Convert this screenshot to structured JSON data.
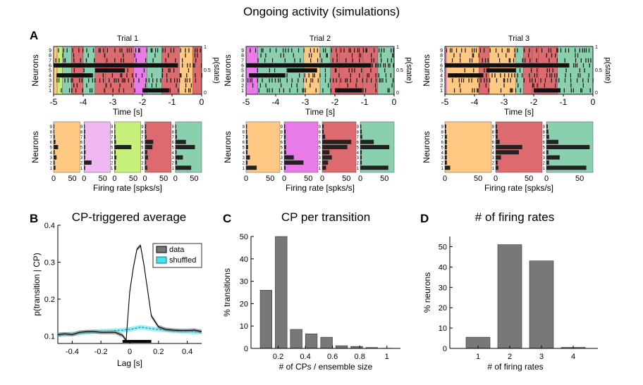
{
  "figure": {
    "title": "Ongoing activity (simulations)",
    "panel_labels": [
      "A",
      "B",
      "C",
      "D"
    ]
  },
  "colors": {
    "orange": "#FFC983",
    "pink": "#E87BE8",
    "lightpink": "#F0B8F0",
    "lime": "#C6F07A",
    "red": "#DC6A6E",
    "green": "#8ACFAE",
    "bar": "#787878",
    "cyan": "#3FE6F0"
  },
  "panel_a": {
    "ylabel_neurons": "Neurons",
    "ylabel_pstate": "p(state)",
    "xlabel_time": "Time [s]",
    "xlabel_rate": "Firing rate [spks/s]",
    "pstate_ticks": [
      "1",
      "0.5",
      "0"
    ],
    "neuron_ticks": [
      "9",
      "8",
      "7",
      "6",
      "5",
      "4",
      "3",
      "2",
      "1"
    ],
    "time_ticks": [
      "-5",
      "-4",
      "-3",
      "-2",
      "-1",
      "0"
    ],
    "trials": [
      {
        "title": "Trial 1",
        "segments": [
          [
            -5,
            -4.88,
            "orange"
          ],
          [
            -4.88,
            -4.7,
            "lime"
          ],
          [
            -4.7,
            -4.4,
            "green"
          ],
          [
            -4.4,
            -4.0,
            "red"
          ],
          [
            -4.0,
            -3.6,
            "green"
          ],
          [
            -3.6,
            -3.25,
            "red"
          ],
          [
            -3.25,
            -2.3,
            "red"
          ],
          [
            -2.3,
            -1.85,
            "pink"
          ],
          [
            -1.85,
            -1.35,
            "green"
          ],
          [
            -1.35,
            -0.75,
            "red"
          ],
          [
            -0.75,
            -0.3,
            "orange"
          ],
          [
            -0.3,
            0,
            "red"
          ]
        ],
        "rate_states": [
          {
            "color": "orange",
            "rates": [
              5,
              3,
              8,
              3,
              12,
              5,
              3,
              2,
              2
            ]
          },
          {
            "color": "lightpink",
            "rates": [
              3,
              20,
              3,
              4,
              3,
              2,
              3,
              3,
              2
            ]
          },
          {
            "color": "lime",
            "rates": [
              4,
              3,
              5,
              3,
              45,
              4,
              3,
              2,
              2
            ]
          },
          {
            "color": "red",
            "rates": [
              6,
              3,
              8,
              6,
              20,
              22,
              4,
              3,
              3
            ]
          },
          {
            "color": "green",
            "rates": [
              42,
              4,
              20,
              3,
              52,
              28,
              4,
              3,
              2
            ]
          }
        ],
        "rate_ticks": [
          "0",
          "50"
        ]
      },
      {
        "title": "Trial 2",
        "segments": [
          [
            -5,
            -4.6,
            "pink"
          ],
          [
            -4.6,
            -3.05,
            "green"
          ],
          [
            -3.05,
            -2.5,
            "orange"
          ],
          [
            -2.5,
            -2.15,
            "green"
          ],
          [
            -2.15,
            -1.85,
            "red"
          ],
          [
            -1.85,
            -1.05,
            "red"
          ],
          [
            -1.05,
            -0.55,
            "red"
          ],
          [
            -0.55,
            0,
            "green"
          ]
        ],
        "rate_states": [
          {
            "color": "orange",
            "rates": [
              22,
              3,
              8,
              3,
              4,
              3,
              3,
              2,
              2
            ]
          },
          {
            "color": "pink",
            "rates": [
              3,
              40,
              20,
              4,
              4,
              3,
              3,
              3,
              2
            ]
          },
          {
            "color": "red",
            "rates": [
              8,
              12,
              20,
              15,
              52,
              60,
              6,
              3,
              3
            ]
          },
          {
            "color": "green",
            "rates": [
              58,
              3,
              3,
              3,
              60,
              28,
              4,
              3,
              2
            ]
          }
        ],
        "rate_ticks": [
          "0",
          "50"
        ]
      },
      {
        "title": "Trial 3",
        "segments": [
          [
            -5,
            -4.95,
            "pink"
          ],
          [
            -4.95,
            -3.85,
            "orange"
          ],
          [
            -3.85,
            -3.5,
            "red"
          ],
          [
            -3.5,
            -2.6,
            "orange"
          ],
          [
            -2.6,
            -2.35,
            "green"
          ],
          [
            -2.35,
            -2.05,
            "red"
          ],
          [
            -2.05,
            -1.85,
            "red"
          ],
          [
            -1.85,
            -1.2,
            "red"
          ],
          [
            -1.2,
            0,
            "green"
          ]
        ],
        "rate_states": [
          {
            "color": "orange",
            "rates": [
              8,
              3,
              3,
              3,
              3,
              3,
              3,
              2,
              2
            ]
          },
          {
            "color": "red",
            "rates": [
              4,
              3,
              8,
              35,
              40,
              6,
              3,
              3,
              2
            ]
          },
          {
            "color": "green",
            "rates": [
              60,
              4,
              20,
              3,
              65,
              18,
              4,
              3,
              2
            ]
          }
        ],
        "rate_ticks": [
          "0",
          "50"
        ]
      }
    ]
  },
  "chart_data": [
    {
      "type": "line",
      "panel": "B",
      "title": "CP-triggered average",
      "xlabel": "Lag [s]",
      "ylabel": "p(transition | CP)",
      "xlim": [
        -0.5,
        0.5
      ],
      "ylim": [
        0.08,
        0.4
      ],
      "xticks": [
        "-0.4",
        "-0.2",
        "0",
        "0.2",
        "0.4"
      ],
      "yticks": [
        "0.1",
        "0.2",
        "0.3",
        "0.4"
      ],
      "x": [
        -0.5,
        -0.45,
        -0.4,
        -0.35,
        -0.3,
        -0.25,
        -0.2,
        -0.15,
        -0.1,
        -0.05,
        -0.025,
        0,
        0.025,
        0.05,
        0.075,
        0.1,
        0.15,
        0.2,
        0.25,
        0.3,
        0.35,
        0.4,
        0.45,
        0.5
      ],
      "series": [
        {
          "name": "data",
          "color": "#000000",
          "values": [
            0.104,
            0.106,
            0.104,
            0.11,
            0.112,
            0.112,
            0.11,
            0.11,
            0.11,
            0.102,
            0.088,
            0.22,
            0.285,
            0.335,
            0.345,
            0.29,
            0.155,
            0.125,
            0.118,
            0.116,
            0.115,
            0.115,
            0.116,
            0.112
          ]
        },
        {
          "name": "shuffled",
          "color": "#3FE6F0",
          "values": [
            0.104,
            0.104,
            0.106,
            0.108,
            0.11,
            0.112,
            0.113,
            0.114,
            0.115,
            0.116,
            0.117,
            0.118,
            0.12,
            0.122,
            0.124,
            0.123,
            0.12,
            0.118,
            0.116,
            0.114,
            0.113,
            0.112,
            0.111,
            0.111
          ]
        }
      ],
      "legend": [
        "data",
        "shuffled"
      ],
      "legend_position": "top-right",
      "significance_bar": [
        -0.05,
        0.15
      ]
    },
    {
      "type": "bar",
      "panel": "C",
      "title": "CP per transition",
      "xlabel": "# of CPs / ensemble size",
      "ylabel": "% transitions",
      "x": [
        0.111,
        0.222,
        0.333,
        0.444,
        0.556,
        0.667,
        0.778,
        0.889,
        1.0
      ],
      "values": [
        26,
        50,
        8.5,
        6.5,
        5,
        1.2,
        0.9,
        0.4,
        0.1
      ],
      "xlim": [
        0,
        1.1
      ],
      "ylim": [
        0,
        50
      ],
      "xticks": [
        "0.2",
        "0.4",
        "0.6",
        "0.8",
        "1"
      ],
      "yticks": [
        "0",
        "10",
        "20",
        "30",
        "40",
        "50"
      ]
    },
    {
      "type": "bar",
      "panel": "D",
      "title": "# of firing rates",
      "xlabel": "# of firing rates",
      "ylabel": "% neurons",
      "categories": [
        "1",
        "2",
        "3",
        "4"
      ],
      "values": [
        5.5,
        51,
        43,
        0.5
      ],
      "ylim": [
        0,
        55
      ],
      "yticks": [
        "0",
        "10",
        "20",
        "30",
        "40",
        "50"
      ]
    }
  ]
}
